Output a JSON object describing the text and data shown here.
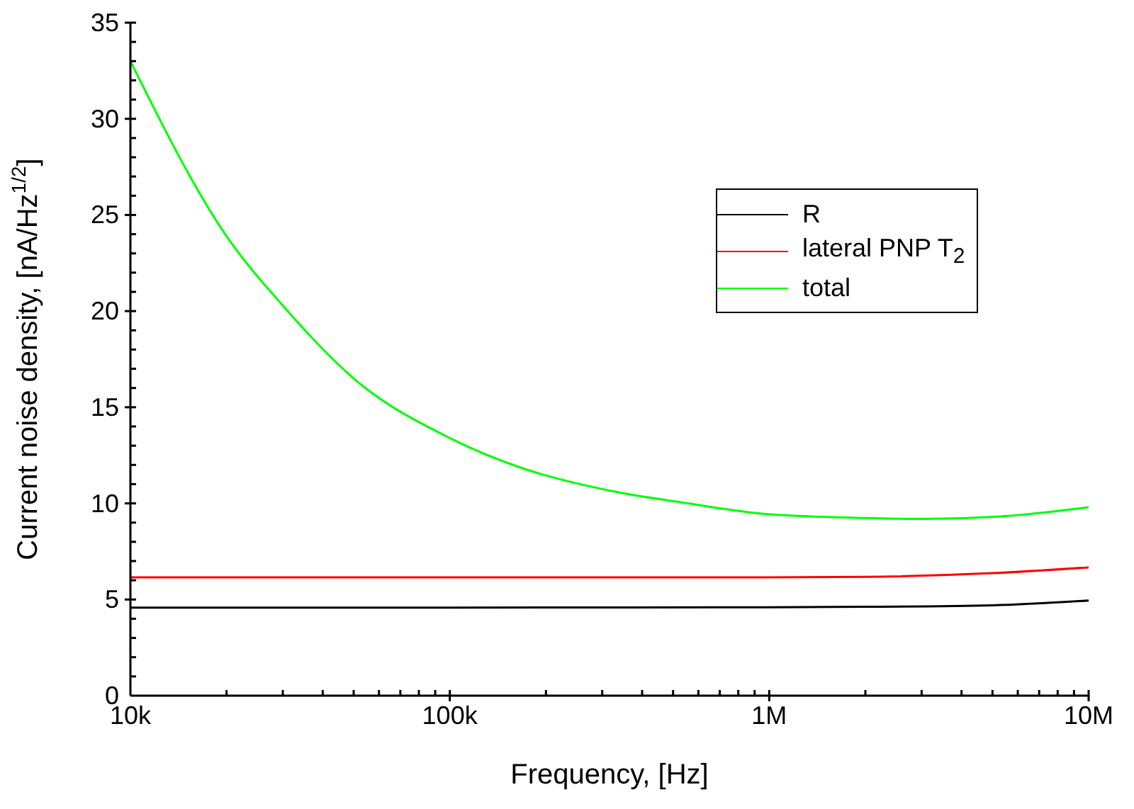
{
  "chart_data": {
    "type": "line",
    "xlabel": "Frequency, [Hz]",
    "ylabel": "Current noise density, [nA/Hz$^{1/2}$]",
    "log": "x",
    "xlim": [
      10000,
      10000000
    ],
    "xticks": [
      {
        "value": 10000,
        "label": "10k"
      },
      {
        "value": 20000,
        "label": null
      },
      {
        "value": 30000,
        "label": null
      },
      {
        "value": 40000,
        "label": null
      },
      {
        "value": 50000,
        "label": null
      },
      {
        "value": 60000,
        "label": null
      },
      {
        "value": 70000,
        "label": null
      },
      {
        "value": 80000,
        "label": null
      },
      {
        "value": 90000,
        "label": null
      },
      {
        "value": 100000,
        "label": "100k"
      },
      {
        "value": 200000,
        "label": null
      },
      {
        "value": 300000,
        "label": null
      },
      {
        "value": 400000,
        "label": null
      },
      {
        "value": 500000,
        "label": null
      },
      {
        "value": 600000,
        "label": null
      },
      {
        "value": 700000,
        "label": null
      },
      {
        "value": 800000,
        "label": null
      },
      {
        "value": 900000,
        "label": null
      },
      {
        "value": 1000000,
        "label": "1M"
      },
      {
        "value": 2000000,
        "label": null
      },
      {
        "value": 3000000,
        "label": null
      },
      {
        "value": 4000000,
        "label": null
      },
      {
        "value": 5000000,
        "label": null
      },
      {
        "value": 6000000,
        "label": null
      },
      {
        "value": 7000000,
        "label": null
      },
      {
        "value": 8000000,
        "label": null
      },
      {
        "value": 9000000,
        "label": null
      },
      {
        "value": 10000000,
        "label": "10M"
      }
    ],
    "ylim": [
      0,
      35
    ],
    "yticks": [
      0,
      {
        "value": 1,
        "label": null
      },
      {
        "value": 2,
        "label": null
      },
      {
        "value": 3,
        "label": null
      },
      {
        "value": 4,
        "label": null
      },
      5,
      {
        "value": 6,
        "label": null
      },
      {
        "value": 7,
        "label": null
      },
      {
        "value": 8,
        "label": null
      },
      {
        "value": 9,
        "label": null
      },
      10,
      {
        "value": 11,
        "label": null
      },
      {
        "value": 12,
        "label": null
      },
      {
        "value": 13,
        "label": null
      },
      {
        "value": 14,
        "label": null
      },
      15,
      {
        "value": 16,
        "label": null
      },
      {
        "value": 17,
        "label": null
      },
      {
        "value": 18,
        "label": null
      },
      {
        "value": 19,
        "label": null
      },
      20,
      {
        "value": 21,
        "label": null
      },
      {
        "value": 22,
        "label": null
      },
      {
        "value": 23,
        "label": null
      },
      {
        "value": 24,
        "label": null
      },
      25,
      {
        "value": 26,
        "label": null
      },
      {
        "value": 27,
        "label": null
      },
      {
        "value": 28,
        "label": null
      },
      {
        "value": 29,
        "label": null
      },
      30,
      {
        "value": 31,
        "label": null
      },
      {
        "value": 32,
        "label": null
      },
      {
        "value": 33,
        "label": null
      },
      {
        "value": 34,
        "label": null
      },
      35
    ],
    "grid": false,
    "legend": "top right",
    "marker": "none",
    "line_style": "solid",
    "series": [
      {
        "name": "R",
        "color": "#000000",
        "x": [
          10000,
          100000,
          1000000,
          2000000,
          5000000,
          10000000
        ],
        "values": [
          4.58,
          4.58,
          4.6,
          4.62,
          4.7,
          4.95
        ]
      },
      {
        "name": "lateral PNP T$_{2}$",
        "color": "#ff0000",
        "x": [
          10000,
          100000,
          1000000,
          2000000,
          5000000,
          10000000
        ],
        "values": [
          6.15,
          6.15,
          6.15,
          6.18,
          6.37,
          6.67
        ]
      },
      {
        "name": "total",
        "color": "#00ff00",
        "x": [
          10000,
          19800,
          30700,
          50800,
          100000,
          164000,
          331000,
          532000,
          1000000,
          2040000,
          3040000,
          5200000,
          10000000
        ],
        "values": [
          33.0,
          24.0,
          20.1,
          16.4,
          13.4,
          11.9,
          10.6,
          10.05,
          9.43,
          9.24,
          9.19,
          9.31,
          9.8
        ]
      }
    ]
  }
}
